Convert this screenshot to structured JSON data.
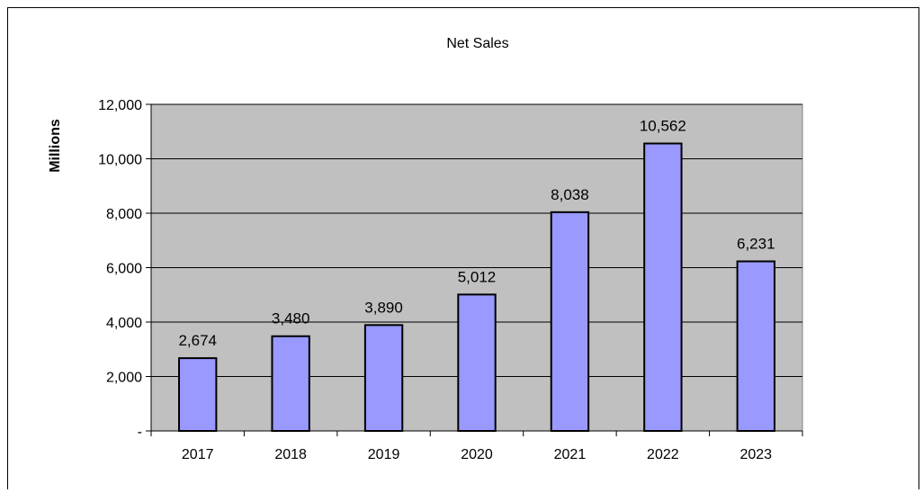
{
  "chart_data": {
    "type": "bar",
    "title": "Net Sales",
    "ylabel": "Millions",
    "xlabel": "",
    "categories": [
      "2017",
      "2018",
      "2019",
      "2020",
      "2021",
      "2022",
      "2023"
    ],
    "values": [
      2674,
      3480,
      3890,
      5012,
      8038,
      10562,
      6231
    ],
    "data_labels": [
      "2,674",
      "3,480",
      "3,890",
      "5,012",
      "8,038",
      "10,562",
      "6,231"
    ],
    "ylim": [
      0,
      12000
    ],
    "yticks": [
      0,
      2000,
      4000,
      6000,
      8000,
      10000,
      12000
    ],
    "ytick_labels": [
      "-",
      "2,000",
      "4,000",
      "6,000",
      "8,000",
      "10,000",
      "12,000"
    ],
    "grid": true,
    "colors": {
      "bar_fill": "#9999ff",
      "bar_stroke": "#000000",
      "plot_background": "#c0c0c0",
      "gridline": "#000000"
    }
  }
}
